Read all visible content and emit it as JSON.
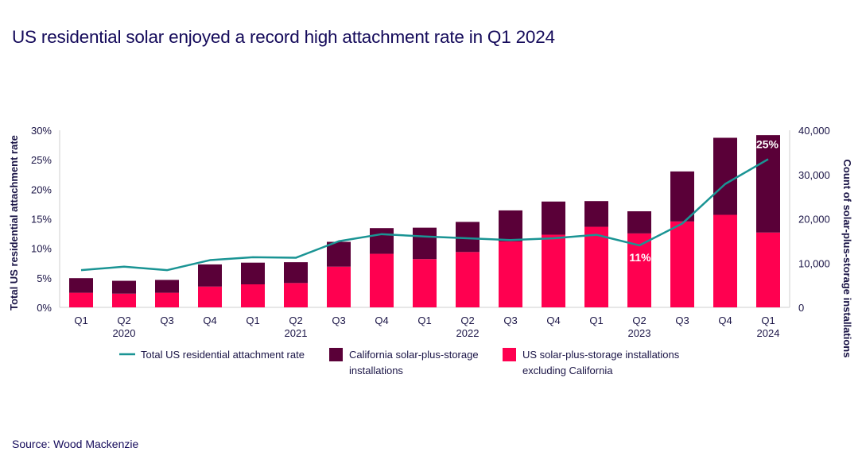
{
  "title": "US residential solar enjoyed a record high attachment rate in Q1 2024",
  "source": "Source: Wood Mackenzie",
  "chart_data": {
    "type": "bar",
    "stacked": true,
    "categories": [
      "Q1",
      "Q2",
      "Q3",
      "Q4",
      "Q1",
      "Q2",
      "Q3",
      "Q4",
      "Q1",
      "Q2",
      "Q3",
      "Q4",
      "Q1",
      "Q2",
      "Q3",
      "Q4",
      "Q1"
    ],
    "year_labels": [
      {
        "index": 1,
        "label": "2020"
      },
      {
        "index": 5,
        "label": "2021"
      },
      {
        "index": 9,
        "label": "2022"
      },
      {
        "index": 13,
        "label": "2023"
      },
      {
        "index": 16,
        "label": "2024"
      }
    ],
    "ylabel_left": "Total US residential attachment rate",
    "ylabel_right": "Count of solar-plus-storage installations",
    "ylim_left": [
      0,
      30
    ],
    "yticks_left": [
      "0%",
      "5%",
      "10%",
      "15%",
      "20%",
      "25%",
      "30%"
    ],
    "ylim_right": [
      0,
      40000
    ],
    "yticks_right": [
      "0",
      "10,000",
      "20,000",
      "30,000",
      "40,000"
    ],
    "grid": false,
    "legend_position": "bottom",
    "series": [
      {
        "name": "US solar-plus-storage installations excluding California",
        "axis": "right",
        "kind": "bar",
        "color": "#ff0050",
        "values": [
          3300,
          3100,
          3300,
          4700,
          5200,
          5500,
          9200,
          12100,
          10900,
          12500,
          14900,
          16400,
          18200,
          16700,
          19400,
          20900,
          16900
        ]
      },
      {
        "name": "California solar-plus-storage installations",
        "axis": "right",
        "kind": "bar",
        "color": "#5a0038",
        "values": [
          3300,
          2900,
          2900,
          5000,
          4900,
          4700,
          5600,
          5800,
          7100,
          6800,
          7000,
          7500,
          5800,
          5000,
          11300,
          17400,
          22000
        ]
      },
      {
        "name": "Total US residential attachment rate",
        "axis": "left",
        "kind": "line",
        "color": "#1a9494",
        "values": [
          6.3,
          6.9,
          6.3,
          8.0,
          8.5,
          8.4,
          11.2,
          12.4,
          12.0,
          11.7,
          11.4,
          11.7,
          12.3,
          10.5,
          14.2,
          20.9,
          25.1
        ]
      }
    ],
    "annotations": [
      {
        "index": 13,
        "label": "11%"
      },
      {
        "index": 16,
        "label": "25%"
      }
    ],
    "legend": [
      "Total US residential attachment rate",
      "California solar-plus-storage installations",
      "US solar-plus-storage installations excluding California"
    ]
  }
}
